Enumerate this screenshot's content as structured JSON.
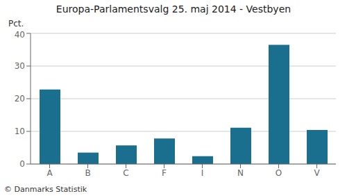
{
  "chart_data": {
    "type": "bar",
    "title": "Europa-Parlamentsvalg 25. maj 2014 - Vestbyen",
    "categories": [
      "A",
      "B",
      "C",
      "F",
      "I",
      "N",
      "O",
      "V"
    ],
    "values": [
      22.8,
      3.5,
      5.7,
      7.8,
      2.4,
      11.1,
      36.5,
      10.4
    ],
    "color": "#1a6e8e",
    "ylabel": "Pct.",
    "ylim": [
      0,
      40
    ],
    "yticks": [
      0,
      10,
      20,
      30,
      40
    ],
    "grid": true,
    "annotations": [
      "© Danmarks Statistik"
    ]
  }
}
